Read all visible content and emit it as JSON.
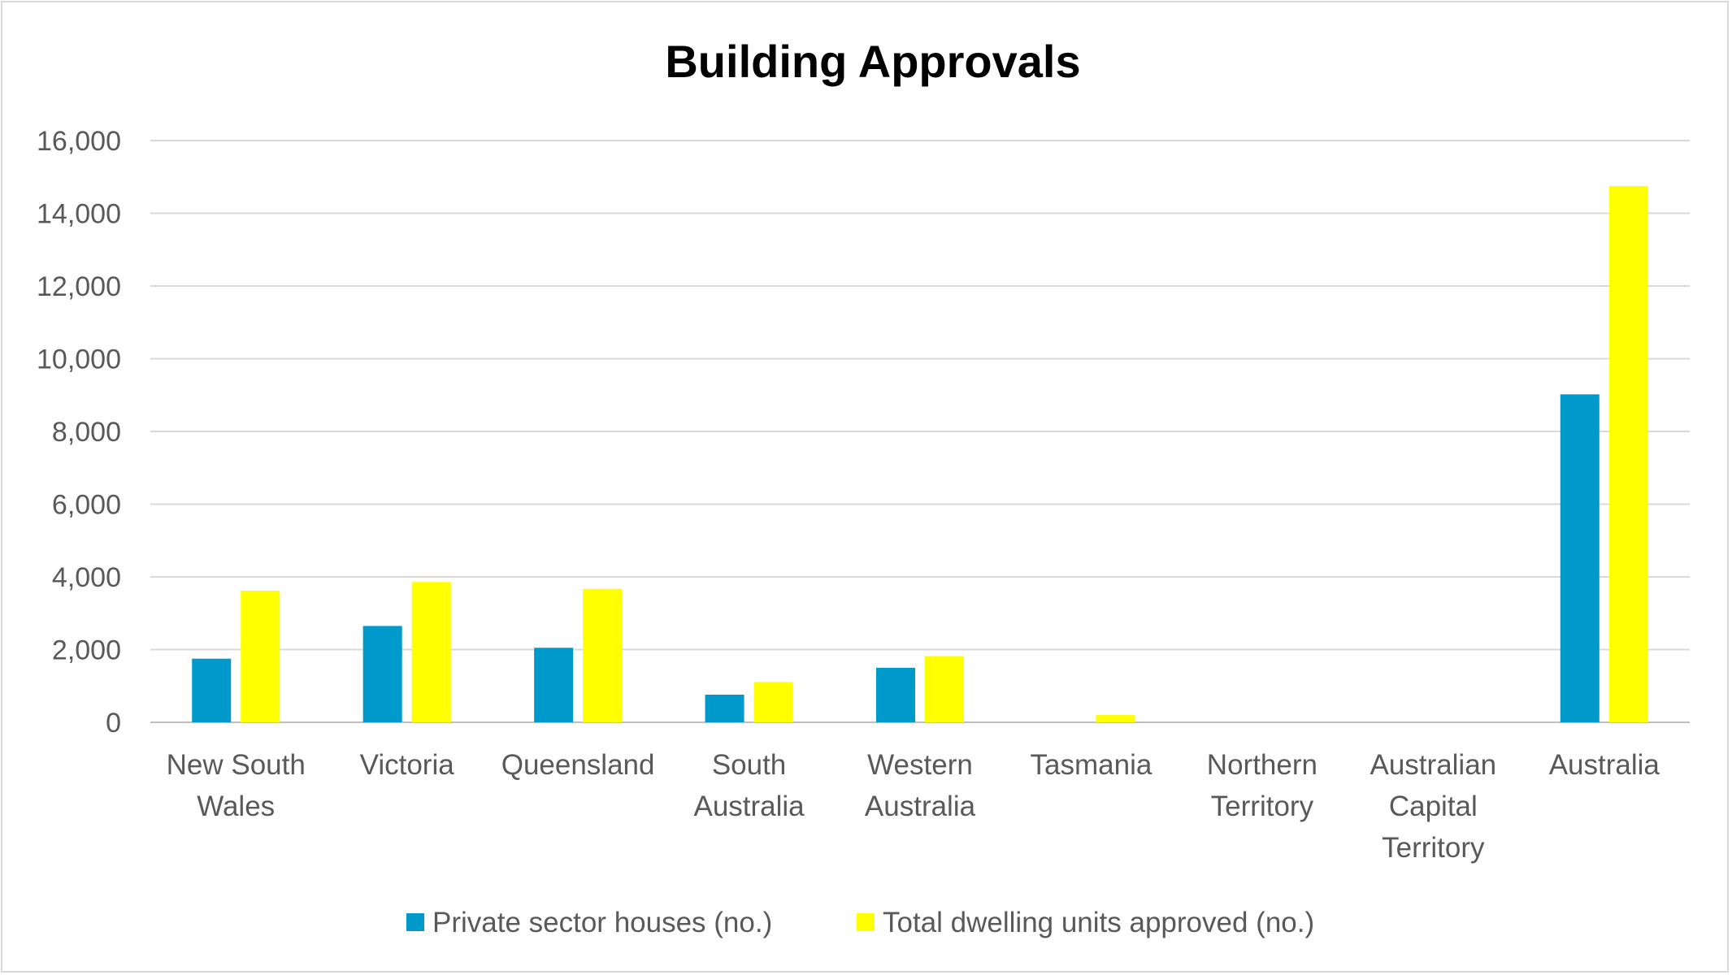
{
  "chart_data": {
    "type": "bar",
    "title": "Building Approvals",
    "xlabel": "",
    "ylabel": "",
    "categories": [
      [
        "New South",
        "Wales"
      ],
      [
        "Victoria"
      ],
      [
        "Queensland"
      ],
      [
        "South",
        "Australia"
      ],
      [
        "Western",
        "Australia"
      ],
      [
        "Tasmania"
      ],
      [
        "Northern",
        "Territory"
      ],
      [
        "Australian",
        "Capital",
        "Territory"
      ],
      [
        "Australia"
      ]
    ],
    "series": [
      {
        "name": "Private sector houses (no.)",
        "color": "#0099cc",
        "values": [
          1750,
          2650,
          2050,
          760,
          1500,
          0,
          0,
          0,
          9020
        ]
      },
      {
        "name": "Total dwelling units approved (no.)",
        "color": "#ffff00",
        "values": [
          3620,
          3860,
          3670,
          1110,
          1820,
          200,
          0,
          0,
          14750
        ]
      }
    ],
    "ylim": [
      0,
      16000
    ],
    "yticks": [
      0,
      2000,
      4000,
      6000,
      8000,
      10000,
      12000,
      14000,
      16000
    ],
    "ytick_labels": [
      "0",
      "2,000",
      "4,000",
      "6,000",
      "8,000",
      "10,000",
      "12,000",
      "14,000",
      "16,000"
    ],
    "grid": true,
    "legend_position": "bottom"
  }
}
